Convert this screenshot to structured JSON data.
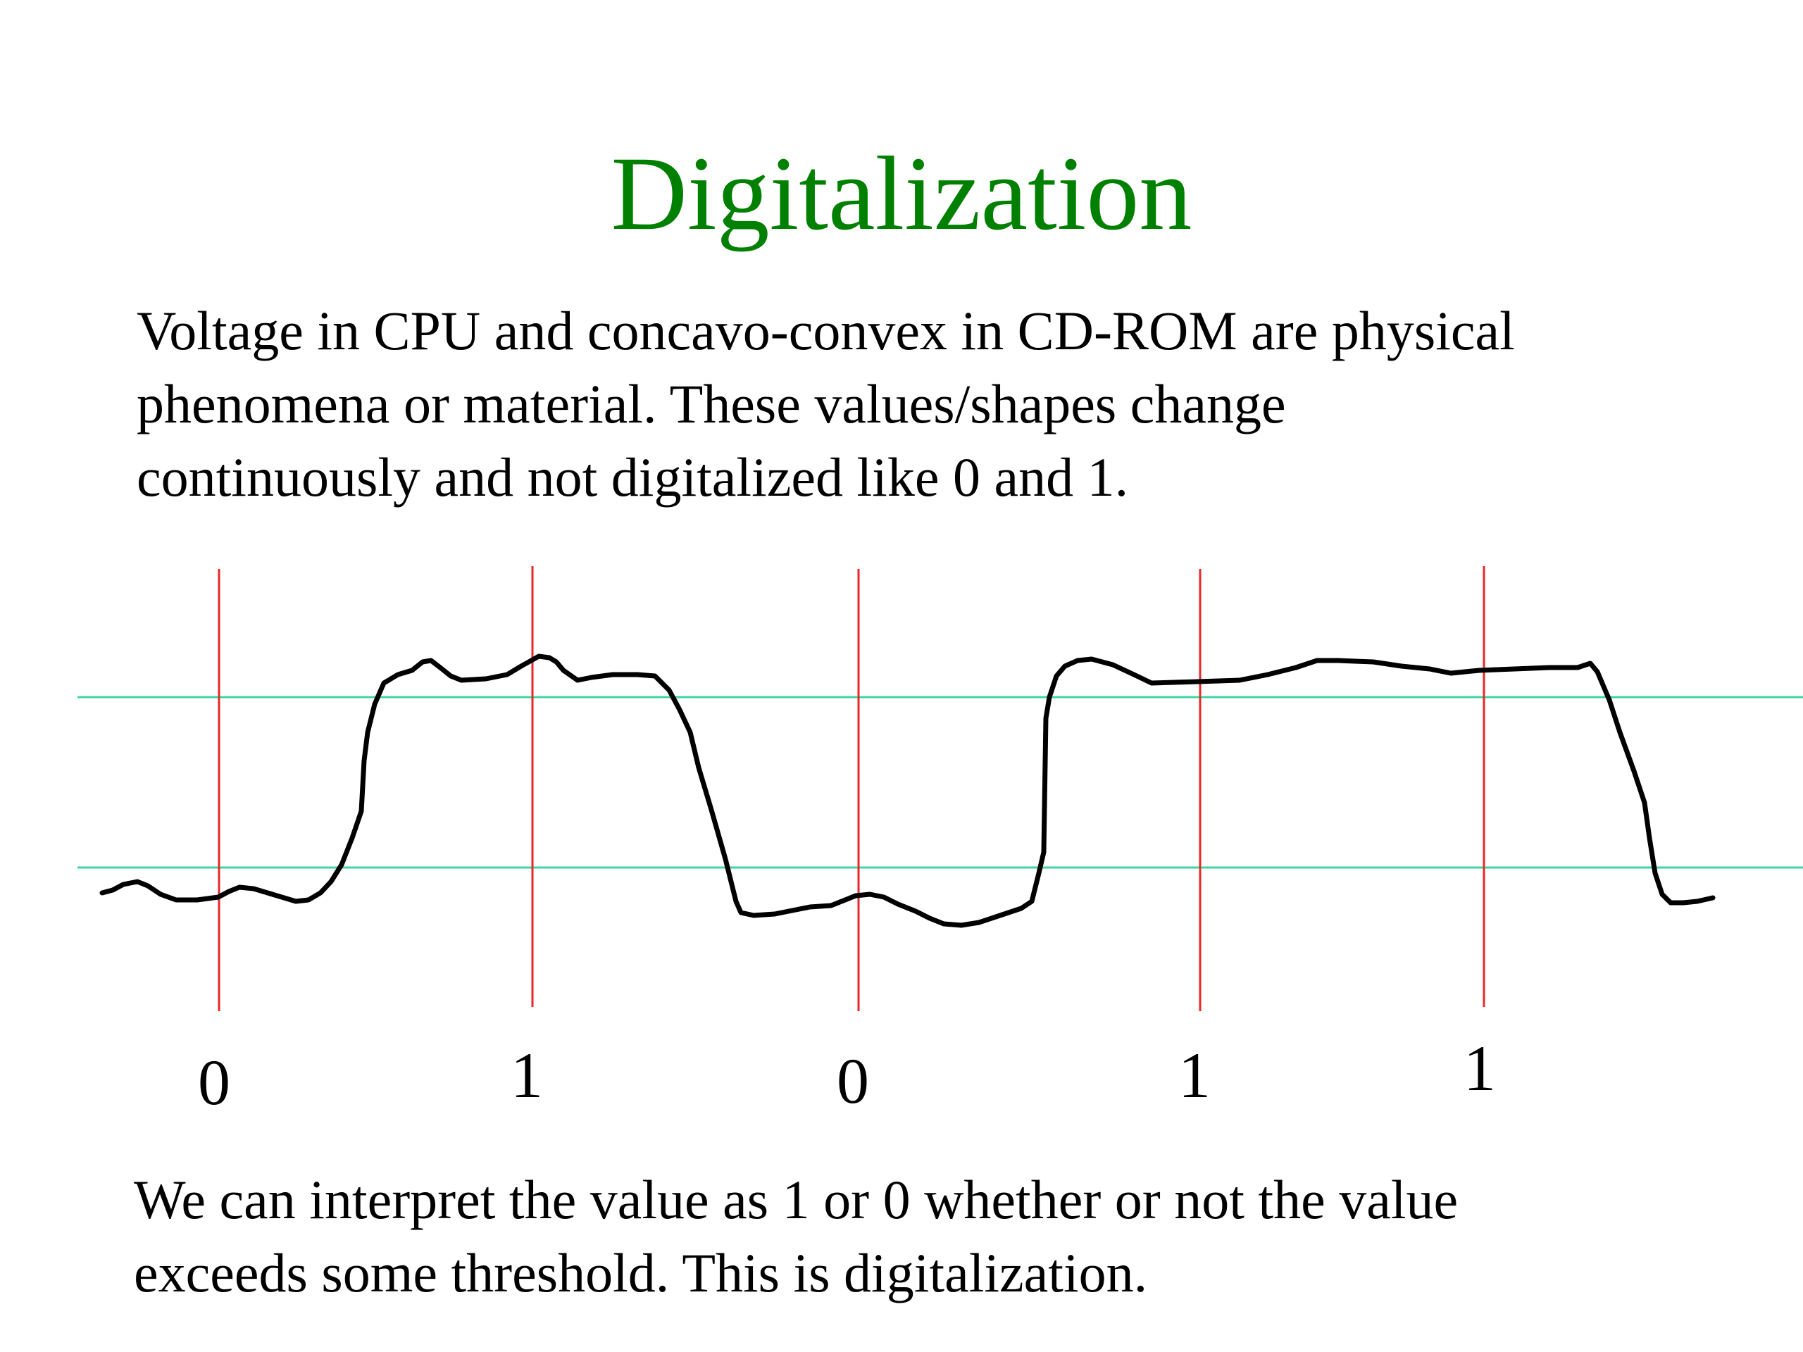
{
  "slide": {
    "title": "Digitalization",
    "intro_lines": [
      "Voltage in CPU and concavo-convex in CD-ROM are physical",
      "phenomena or material. These values/shapes change",
      "continuously and not digitalized like 0 and 1."
    ],
    "conclusion_lines": [
      "We can interpret the value as 1 or 0 whether or not the value",
      "exceeds some threshold. This is digitalization."
    ]
  },
  "diagram": {
    "bit_labels": [
      "0",
      "1",
      "0",
      "1",
      "1"
    ],
    "colors": {
      "title": "#008000",
      "signal": "#000000",
      "sample_lines": "#e8282a",
      "threshold_lines": "#3fd6a0"
    }
  }
}
